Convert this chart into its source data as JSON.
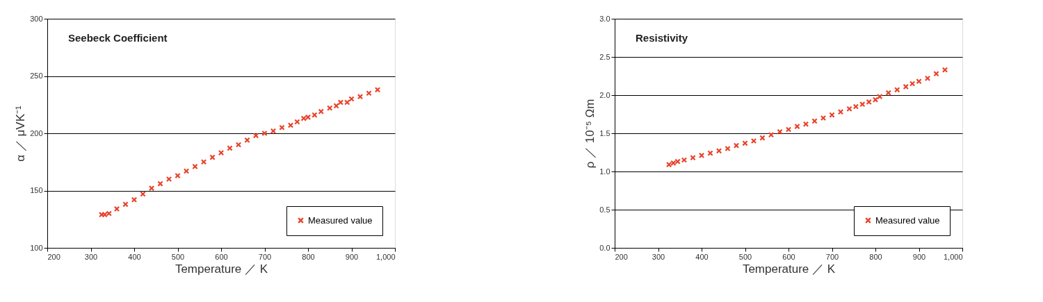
{
  "chart_data": [
    {
      "type": "scatter",
      "title": "Seebeck Coefficient",
      "xlabel": "Temperature ／ K",
      "ylabel": "α ／ μVK⁻¹",
      "x": [
        325,
        332,
        342,
        360,
        380,
        400,
        420,
        440,
        460,
        480,
        500,
        520,
        540,
        560,
        580,
        600,
        620,
        640,
        660,
        680,
        700,
        720,
        740,
        760,
        775,
        790,
        800,
        815,
        830,
        850,
        865,
        875,
        890,
        900,
        920,
        940,
        960
      ],
      "series": [
        {
          "name": "Measured value",
          "color": "#e8432a",
          "values": [
            129,
            129,
            130,
            134,
            138,
            142,
            147,
            152,
            156,
            160,
            163,
            167,
            171,
            175,
            179,
            183,
            187,
            190,
            194,
            198,
            200,
            202,
            205,
            207,
            210,
            213,
            214,
            216,
            219,
            222,
            224,
            227,
            227,
            230,
            232,
            235,
            238
          ]
        }
      ],
      "xlim": [
        200,
        1000
      ],
      "xticks": [
        200,
        300,
        400,
        500,
        600,
        700,
        800,
        900,
        {
          "value": 1000,
          "label": "1,000"
        }
      ],
      "ylim": [
        100,
        300
      ],
      "yticks": [
        100,
        150,
        200,
        250,
        300
      ],
      "grid": "y",
      "legend": "bottom right",
      "marker": "cross"
    },
    {
      "type": "scatter",
      "title": "Resistivity",
      "xlabel": "Temperature ／ K",
      "ylabel": "ρ ／ 10⁻⁵ Ωm",
      "x": [
        325,
        335,
        345,
        360,
        380,
        400,
        420,
        440,
        460,
        480,
        500,
        520,
        540,
        560,
        580,
        600,
        620,
        640,
        660,
        680,
        700,
        720,
        740,
        755,
        770,
        785,
        800,
        810,
        830,
        850,
        870,
        885,
        900,
        920,
        940,
        960
      ],
      "series": [
        {
          "name": "Measured value",
          "color": "#e8432a",
          "values": [
            1.09,
            1.11,
            1.13,
            1.15,
            1.18,
            1.21,
            1.24,
            1.27,
            1.3,
            1.34,
            1.37,
            1.4,
            1.44,
            1.48,
            1.52,
            1.55,
            1.59,
            1.62,
            1.66,
            1.7,
            1.74,
            1.78,
            1.82,
            1.85,
            1.88,
            1.91,
            1.94,
            1.98,
            2.03,
            2.07,
            2.11,
            2.15,
            2.18,
            2.22,
            2.28,
            2.33
          ]
        }
      ],
      "xlim": [
        200,
        1000
      ],
      "xticks": [
        200,
        300,
        400,
        500,
        600,
        700,
        800,
        900,
        {
          "value": 1000,
          "label": "1,000"
        }
      ],
      "ylim": [
        0,
        3
      ],
      "yticks": [
        {
          "value": 0,
          "label": "0.0"
        },
        0.5,
        {
          "value": 1,
          "label": "1.0"
        },
        1.5,
        {
          "value": 2,
          "label": "2.0"
        },
        2.5,
        {
          "value": 3,
          "label": "3.0"
        }
      ],
      "grid": "y",
      "legend": "bottom right",
      "marker": "cross"
    }
  ]
}
